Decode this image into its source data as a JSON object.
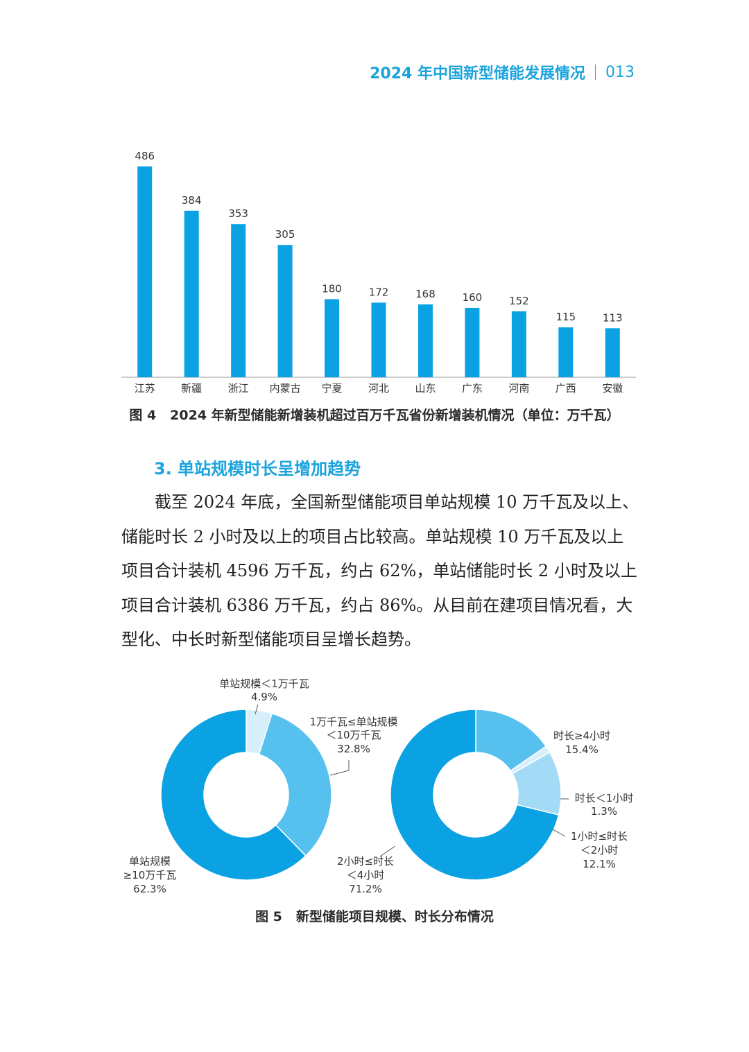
{
  "header": {
    "title": "2024 年中国新型储能发展情况",
    "page": "013"
  },
  "chart_data": [
    {
      "type": "bar",
      "categories": [
        "江苏",
        "新疆",
        "浙江",
        "内蒙古",
        "宁夏",
        "河北",
        "山东",
        "广东",
        "河南",
        "广西",
        "安徽"
      ],
      "values": [
        486,
        384,
        353,
        305,
        180,
        172,
        168,
        160,
        152,
        115,
        113
      ],
      "title": "2024 年新型储能新增装机超过百万千瓦省份新增装机情况（单位：万千瓦）",
      "ylim": [
        0,
        486
      ],
      "color": "#0aa2e3"
    },
    {
      "type": "pie",
      "donut": true,
      "labels": [
        "单站规模＜1万千瓦",
        "1万千瓦≤单站规模＜10万千瓦",
        "单站规模≥10万千瓦"
      ],
      "values": [
        4.9,
        32.8,
        62.3
      ],
      "colors": [
        "#d7eefb",
        "#56c0ef",
        "#0aa2e3"
      ]
    },
    {
      "type": "pie",
      "donut": true,
      "labels": [
        "时长≥4小时",
        "时长＜1小时",
        "1小时≤时长＜2小时",
        "2小时≤时长＜4小时"
      ],
      "values": [
        15.4,
        1.3,
        12.1,
        71.2
      ],
      "colors": [
        "#56c0ef",
        "#d7eefb",
        "#a3dbf6",
        "#0aa2e3"
      ]
    }
  ],
  "figure4": {
    "number": "图 4",
    "title": "2024 年新型储能新增装机超过百万千瓦省份新增装机情况（单位：万千瓦）"
  },
  "section": {
    "heading": "3. 单站规模时长呈增加趋势"
  },
  "body_lines": [
    "截至 2024 年底，全国新型储能项目单站规模 10 万千瓦及以上、",
    "储能时长 2 小时及以上的项目占比较高。单站规模 10 万千瓦及以上",
    "项目合计装机 4596 万千瓦，约占 62%，单站储能时长 2 小时及以上",
    "项目合计装机 6386 万千瓦，约占 86%。从目前在建项目情况看，大",
    "型化、中长时新型储能项目呈增长趋势。"
  ],
  "donut_labels": {
    "left": {
      "small": [
        "单站规模＜1万千瓦",
        "4.9%"
      ],
      "mid": [
        "1万千瓦≤单站规模",
        "＜10万千瓦",
        "32.8%"
      ],
      "large": [
        "单站规模",
        "≥10万千瓦",
        "62.3%"
      ]
    },
    "right": {
      "ge4": [
        "时长≥4小时",
        "15.4%"
      ],
      "lt1": [
        "时长＜1小时",
        "1.3%"
      ],
      "1to2": [
        "1小时≤时长",
        "＜2小时",
        "12.1%"
      ],
      "2to4": [
        "2小时≤时长",
        "＜4小时",
        "71.2%"
      ]
    }
  },
  "figure5": {
    "number": "图 5",
    "title": "新型储能项目规模、时长分布情况"
  }
}
